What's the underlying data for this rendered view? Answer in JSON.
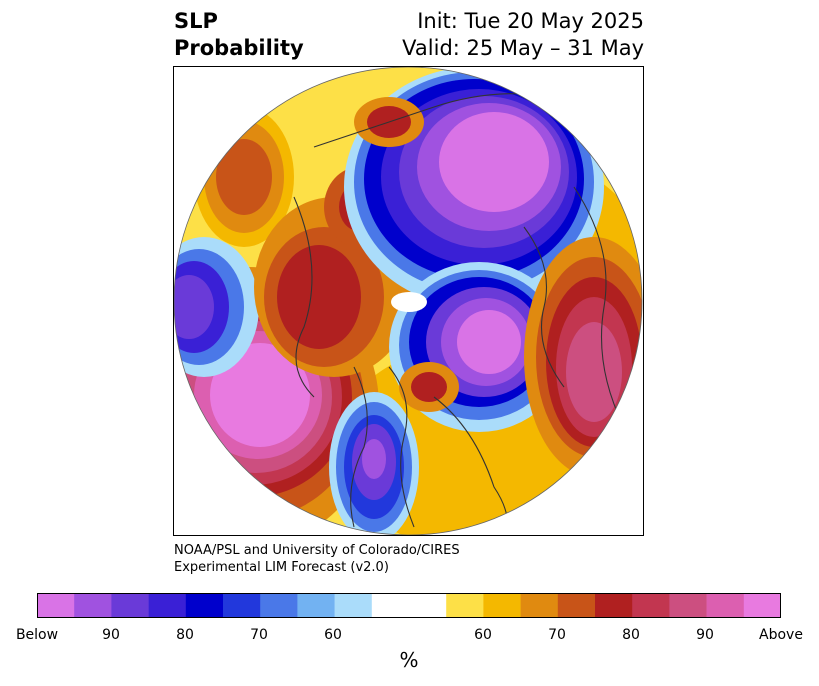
{
  "title": {
    "left_line1": "SLP",
    "left_line2": "Probability",
    "right_line1": "Init: Tue 20 May 2025",
    "right_line2": "Valid: 25 May – 31 May"
  },
  "credit": {
    "line1": "NOAA/PSL and University of Colorado/CIRES",
    "line2": "Experimental LIM Forecast (v2.0)"
  },
  "colorbar": {
    "unit": "%",
    "colors": [
      "#d973e6",
      "#a052e0",
      "#6a3ad8",
      "#3a20d6",
      "#0000cc",
      "#2238dc",
      "#4a78e8",
      "#72b2f2",
      "#aadcfa",
      "#ffffff",
      "#ffffff",
      "#fde047",
      "#f4b800",
      "#e08a10",
      "#c85418",
      "#b02020",
      "#c23650",
      "#cc4f80",
      "#dc5fb0",
      "#e87ae0"
    ],
    "labels": [
      "Below",
      "90",
      "80",
      "70",
      "60",
      "60",
      "70",
      "80",
      "90",
      "Above"
    ]
  },
  "map": {
    "projection": "north polar stereographic",
    "field": "sea level pressure probability"
  }
}
